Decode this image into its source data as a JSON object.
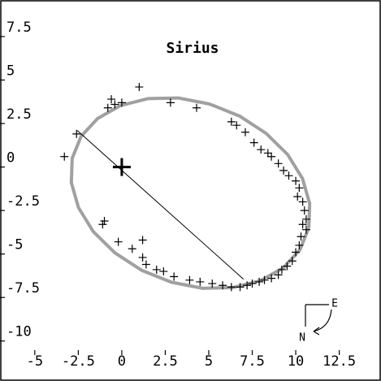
{
  "chart_data": {
    "type": "scatter",
    "title": "Sirius",
    "xlim": [
      -7,
      14.9
    ],
    "ylim": [
      -12.3,
      9.6
    ],
    "xticks": [
      -5,
      -2.5,
      0,
      2.5,
      5,
      7.5,
      10,
      12.5
    ],
    "yticks": [
      -10,
      -7.5,
      -5,
      -2.5,
      0,
      2.5,
      5,
      7.5
    ],
    "grid": false,
    "orbit": {
      "color": "#a0a0a0",
      "x": [
        10.75,
        10.8,
        10.39,
        9.54,
        8.3,
        6.77,
        5.05,
        3.25,
        1.5,
        -0.08,
        -1.39,
        -2.34,
        -2.85,
        -2.9,
        -2.49,
        -1.64,
        -0.4,
        1.13,
        2.85,
        4.65,
        6.4,
        7.98,
        9.29,
        10.24,
        10.75
      ],
      "y": [
        -3.5,
        -2.1,
        -0.67,
        0.71,
        1.93,
        2.93,
        3.62,
        3.97,
        3.93,
        3.53,
        2.79,
        1.76,
        0.5,
        -0.9,
        -2.33,
        -3.71,
        -4.93,
        -5.93,
        -6.62,
        -6.97,
        -6.93,
        -6.53,
        -5.79,
        -4.76,
        -3.5
      ]
    },
    "observations": {
      "color": "#000000",
      "x": [
        1.0,
        -0.6,
        -0.4,
        -0.8,
        0.0,
        2.8,
        4.3,
        6.3,
        6.6,
        7.1,
        7.6,
        8.0,
        8.4,
        8.6,
        9.0,
        9.3,
        9.6,
        10.0,
        10.2,
        10.1,
        10.4,
        10.5,
        10.6,
        10.4,
        10.6,
        10.3,
        10.2,
        10.0,
        9.8,
        9.5,
        9.2,
        9.0,
        8.6,
        8.2,
        7.9,
        7.5,
        7.2,
        6.8,
        6.3,
        5.8,
        5.2,
        4.5,
        3.9,
        3.0,
        2.4,
        2.0,
        1.4,
        1.2,
        0.6,
        1.2,
        -0.2,
        -1.0,
        -1.1,
        -2.6,
        -3.3
      ],
      "y": [
        4.6,
        3.9,
        3.6,
        3.4,
        3.7,
        3.7,
        3.4,
        2.6,
        2.4,
        2.0,
        1.4,
        1.0,
        0.8,
        0.6,
        0.2,
        -0.2,
        -0.5,
        -0.8,
        -1.2,
        -1.7,
        -2.0,
        -2.5,
        -3.0,
        -3.3,
        -3.6,
        -4.0,
        -4.5,
        -4.9,
        -5.4,
        -5.7,
        -5.9,
        -6.2,
        -6.4,
        -6.5,
        -6.6,
        -6.7,
        -6.8,
        -6.9,
        -6.9,
        -6.8,
        -6.7,
        -6.6,
        -6.5,
        -6.3,
        -6.0,
        -5.9,
        -5.6,
        -5.2,
        -4.7,
        -4.2,
        -4.3,
        -3.1,
        -3.3,
        1.9,
        0.6
      ]
    },
    "primary": {
      "x": 0,
      "y": 0
    },
    "apsides": {
      "x": [
        -2.56,
        7.0
      ],
      "y": [
        2.1,
        -6.45
      ]
    },
    "compass": {
      "east": "E",
      "north": "N"
    }
  }
}
